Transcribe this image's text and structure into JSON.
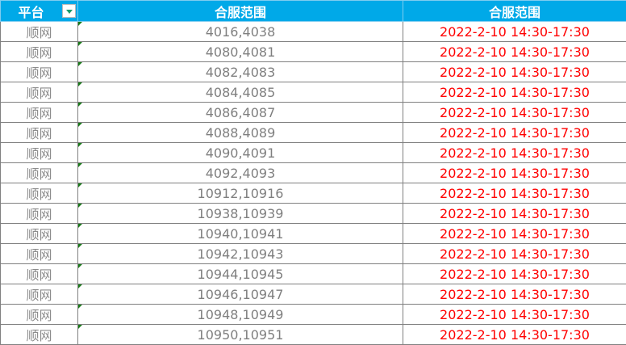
{
  "headers": [
    "平台",
    "合服范围",
    "合服范围"
  ],
  "rows": [
    {
      "platform": "顺网",
      "range": "4016,4038",
      "time": "2022-2-10 14:30-17:30"
    },
    {
      "platform": "顺网",
      "range": "4080,4081",
      "time": "2022-2-10 14:30-17:30"
    },
    {
      "platform": "顺网",
      "range": "4082,4083",
      "time": "2022-2-10 14:30-17:30"
    },
    {
      "platform": "顺网",
      "range": "4084,4085",
      "time": "2022-2-10 14:30-17:30"
    },
    {
      "platform": "顺网",
      "range": "4086,4087",
      "time": "2022-2-10 14:30-17:30"
    },
    {
      "platform": "顺网",
      "range": "4088,4089",
      "time": "2022-2-10 14:30-17:30"
    },
    {
      "platform": "顺网",
      "range": "4090,4091",
      "time": "2022-2-10 14:30-17:30"
    },
    {
      "platform": "顺网",
      "range": "4092,4093",
      "time": "2022-2-10 14:30-17:30"
    },
    {
      "platform": "顺网",
      "range": "10912,10916",
      "time": "2022-2-10 14:30-17:30"
    },
    {
      "platform": "顺网",
      "range": "10938,10939",
      "time": "2022-2-10 14:30-17:30"
    },
    {
      "platform": "顺网",
      "range": "10940,10941",
      "time": "2022-2-10 14:30-17:30"
    },
    {
      "platform": "顺网",
      "range": "10942,10943",
      "time": "2022-2-10 14:30-17:30"
    },
    {
      "platform": "顺网",
      "range": "10944,10945",
      "time": "2022-2-10 14:30-17:30"
    },
    {
      "platform": "顺网",
      "range": "10946,10947",
      "time": "2022-2-10 14:30-17:30"
    },
    {
      "platform": "顺网",
      "range": "10948,10949",
      "time": "2022-2-10 14:30-17:30"
    },
    {
      "platform": "顺网",
      "range": "10950,10951",
      "time": "2022-2-10 14:30-17:30"
    }
  ],
  "colors": {
    "header_bg": "#00a9e8",
    "time_text": "#ff0000",
    "platform_text": "#8c8c8c"
  }
}
